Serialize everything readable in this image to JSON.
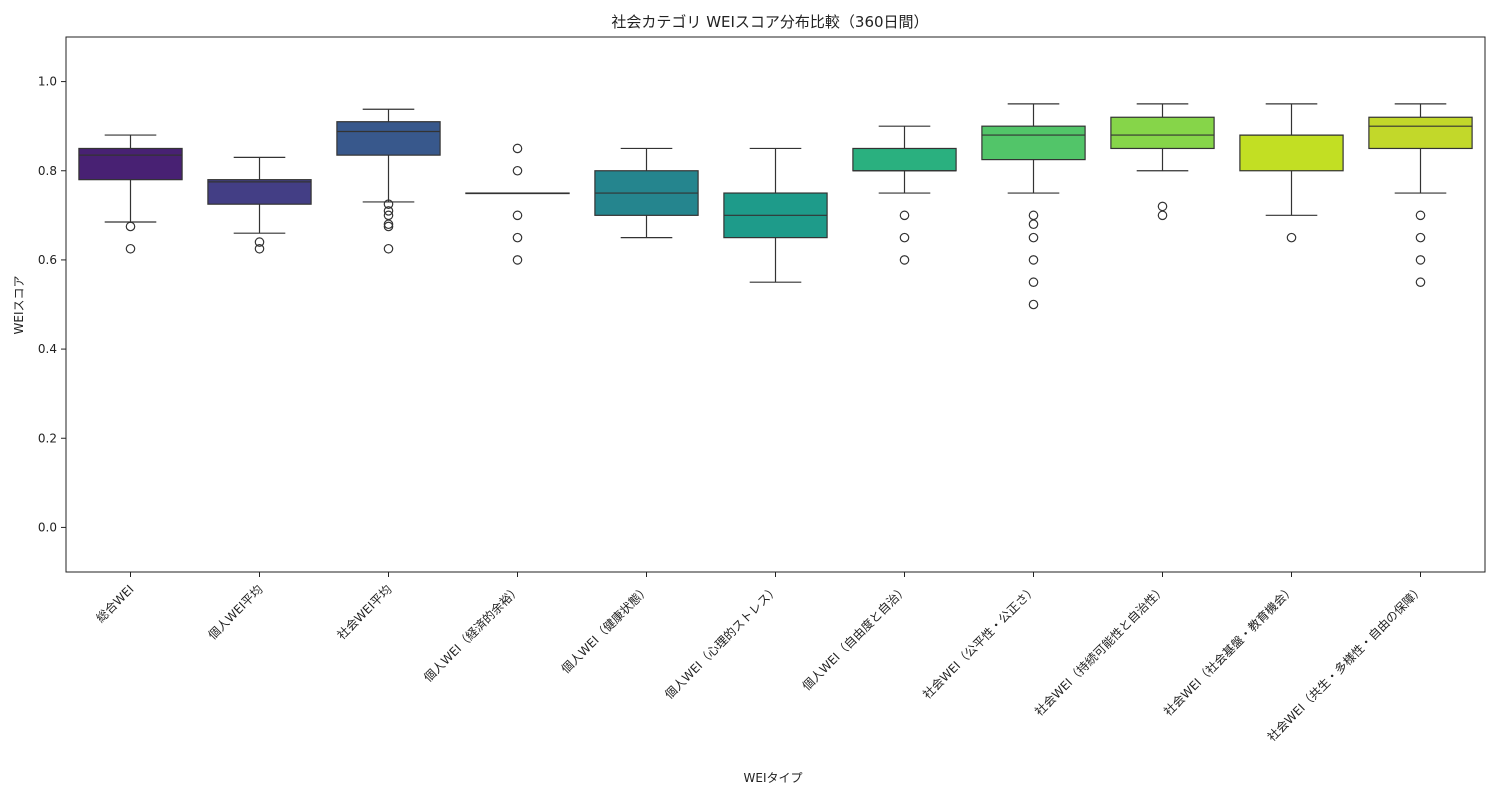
{
  "chart_data": {
    "type": "box",
    "title": "社会カテゴリ WEIスコア分布比較（360日間）",
    "xlabel": "WEIタイプ",
    "ylabel": "WEIスコア",
    "ylim": [
      -0.1,
      1.1
    ],
    "yticks": [
      "0.0",
      "0.2",
      "0.4",
      "0.6",
      "0.8",
      "1.0"
    ],
    "grid": false,
    "categories": [
      "総合WEI",
      "個人WEI平均",
      "社会WEI平均",
      "個人WEI（経済的余裕）",
      "個人WEI（健康状態）",
      "個人WEI（心理的ストレス）",
      "個人WEI（自由度と自治）",
      "社会WEI（公平性・公正さ）",
      "社会WEI（持続可能性と自治性）",
      "社会WEI（社会基盤・教育機会）",
      "社会WEI（共生・多様性・自由の保障）"
    ],
    "boxes": [
      {
        "whisker_low": 0.685,
        "q1": 0.78,
        "median": 0.835,
        "q3": 0.85,
        "whisker_high": 0.88,
        "outliers": [
          0.675,
          0.625
        ],
        "color": "#482173"
      },
      {
        "whisker_low": 0.66,
        "q1": 0.725,
        "median": 0.775,
        "q3": 0.78,
        "whisker_high": 0.83,
        "outliers": [
          0.64,
          0.625
        ],
        "color": "#433e85"
      },
      {
        "whisker_low": 0.73,
        "q1": 0.835,
        "median": 0.888,
        "q3": 0.91,
        "whisker_high": 0.938,
        "outliers": [
          0.725,
          0.71,
          0.7,
          0.68,
          0.675,
          0.625
        ],
        "color": "#38588c"
      },
      {
        "whisker_low": 0.75,
        "q1": 0.75,
        "median": 0.75,
        "q3": 0.75,
        "whisker_high": 0.75,
        "outliers": [
          0.85,
          0.8,
          0.7,
          0.65,
          0.6
        ],
        "color": "#2d708e"
      },
      {
        "whisker_low": 0.65,
        "q1": 0.7,
        "median": 0.75,
        "q3": 0.8,
        "whisker_high": 0.85,
        "outliers": [],
        "color": "#25858e"
      },
      {
        "whisker_low": 0.55,
        "q1": 0.65,
        "median": 0.7,
        "q3": 0.75,
        "whisker_high": 0.85,
        "outliers": [],
        "color": "#1e9b8a"
      },
      {
        "whisker_low": 0.75,
        "q1": 0.8,
        "median": 0.8,
        "q3": 0.85,
        "whisker_high": 0.9,
        "outliers": [
          0.7,
          0.65,
          0.6
        ],
        "color": "#2ab07f"
      },
      {
        "whisker_low": 0.75,
        "q1": 0.825,
        "median": 0.88,
        "q3": 0.9,
        "whisker_high": 0.95,
        "outliers": [
          0.7,
          0.68,
          0.65,
          0.6,
          0.55,
          0.5
        ],
        "color": "#52c569"
      },
      {
        "whisker_low": 0.8,
        "q1": 0.85,
        "median": 0.88,
        "q3": 0.92,
        "whisker_high": 0.95,
        "outliers": [
          0.72,
          0.7
        ],
        "color": "#86d549"
      },
      {
        "whisker_low": 0.7,
        "q1": 0.8,
        "median": 0.88,
        "q3": 0.88,
        "whisker_high": 0.95,
        "outliers": [
          0.65
        ],
        "color": "#c2df23"
      },
      {
        "whisker_low": 0.75,
        "q1": 0.85,
        "median": 0.9,
        "q3": 0.92,
        "whisker_high": 0.95,
        "outliers": [
          0.7,
          0.65,
          0.6,
          0.55
        ],
        "color": "#c2d82a"
      }
    ]
  }
}
